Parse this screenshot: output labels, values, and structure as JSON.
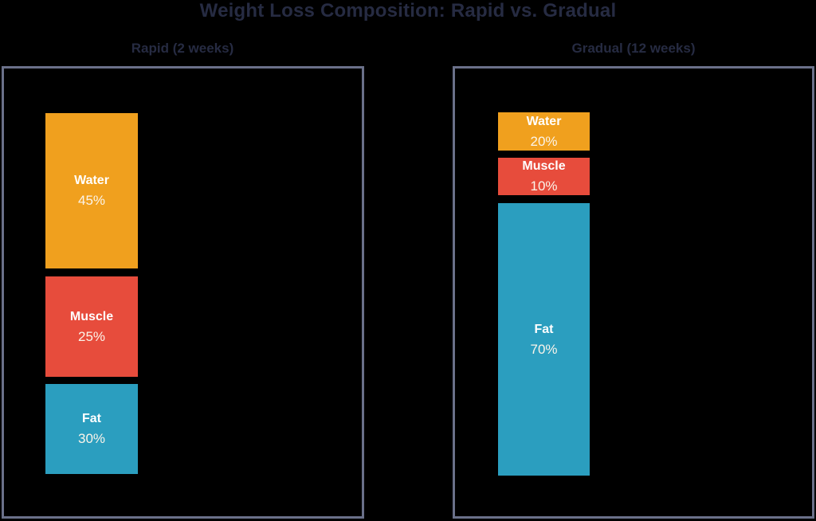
{
  "title": "Weight Loss Composition: Rapid vs. Gradual",
  "colors": {
    "background": "#000000",
    "title_text": "#262B42",
    "panel_border": "#6A7089",
    "segment_text": "#FFFFFF",
    "water": "#F0A01E",
    "muscle": "#E74C3C",
    "fat": "#2B9EBF"
  },
  "panels": [
    {
      "subtitle": "Rapid (2 weeks)",
      "segments": [
        {
          "label": "Water",
          "pct": "45%"
        },
        {
          "label": "Muscle",
          "pct": "25%"
        },
        {
          "label": "Fat",
          "pct": "30%"
        }
      ]
    },
    {
      "subtitle": "Gradual (12 weeks)",
      "segments": [
        {
          "label": "Water",
          "pct": "20%"
        },
        {
          "label": "Muscle",
          "pct": "10%"
        },
        {
          "label": "Fat",
          "pct": "70%"
        }
      ]
    }
  ],
  "chart_data": {
    "type": "bar",
    "title": "Weight Loss Composition: Rapid vs. Gradual",
    "stacked": true,
    "categories": [
      "Water",
      "Muscle",
      "Fat"
    ],
    "series": [
      {
        "name": "Rapid (2 weeks)",
        "values": [
          45,
          25,
          30
        ]
      },
      {
        "name": "Gradual (12 weeks)",
        "values": [
          20,
          10,
          70
        ]
      }
    ],
    "value_unit": "%",
    "segment_colors": {
      "Water": "#F0A01E",
      "Muscle": "#E74C3C",
      "Fat": "#2B9EBF"
    },
    "legend": "labels-inside-segments",
    "grid": false,
    "axes": false
  }
}
